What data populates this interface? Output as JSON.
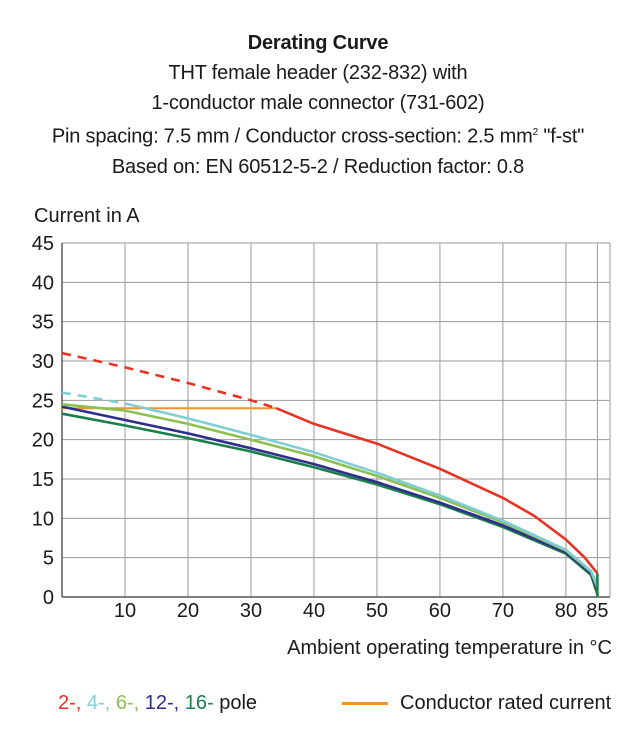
{
  "header": {
    "title": "Derating Curve",
    "line1": "THT female header (232-832) with",
    "line2": "1-conductor male connector  (731-602)",
    "line3_pre": "Pin spacing: 7.5 mm / Conductor cross-section: 2.5 mm",
    "line3_sup": "2",
    "line3_post": " \"f-st\"",
    "line4": "Based on: EN 60512-5-2 / Reduction factor: 0.8"
  },
  "legend": {
    "poles": [
      {
        "label": "2-",
        "sep": ", ",
        "color": "#e63323"
      },
      {
        "label": "4-",
        "sep": ", ",
        "color": "#7fcdd5"
      },
      {
        "label": "6-",
        "sep": ", ",
        "color": "#8cc152"
      },
      {
        "label": "12-",
        "sep": ", ",
        "color": "#2e2e8c"
      },
      {
        "label": "16-",
        "sep": "",
        "color": "#1a7f4b"
      }
    ],
    "pole_suffix": " pole",
    "rated_label": "Conductor rated current",
    "rated_color": "#f39325"
  },
  "chart_data": {
    "type": "line",
    "title": "Derating Curve",
    "ylabel": "Current in A",
    "xlabel": "Ambient operating temperature in °C",
    "xlim": [
      0,
      87
    ],
    "ylim": [
      0,
      45
    ],
    "xticks": [
      10,
      20,
      30,
      40,
      50,
      60,
      70,
      80,
      85
    ],
    "yticks": [
      0,
      5,
      10,
      15,
      20,
      25,
      30,
      35,
      40,
      45
    ],
    "grid": true,
    "rated_current": {
      "name": "Conductor rated current",
      "value": 24,
      "x_range": [
        0,
        34
      ],
      "color": "#f39325"
    },
    "series": [
      {
        "name": "2-pole",
        "color": "#e63323",
        "dashed_until": 34,
        "x": [
          0,
          10,
          20,
          30,
          34,
          40,
          50,
          60,
          70,
          75,
          80,
          83,
          85
        ],
        "y": [
          31,
          29.2,
          27.2,
          25,
          24,
          22,
          19.5,
          16.3,
          12.6,
          10.3,
          7.3,
          5,
          3
        ]
      },
      {
        "name": "4-pole",
        "color": "#7fcdd5",
        "dashed_until": 10,
        "x": [
          0,
          10,
          20,
          30,
          40,
          50,
          60,
          70,
          80,
          84,
          85
        ],
        "y": [
          26,
          24.6,
          22.7,
          20.6,
          18.4,
          15.8,
          12.9,
          9.7,
          6.0,
          3.3,
          1.5
        ]
      },
      {
        "name": "6-pole",
        "color": "#8cc152",
        "dashed_until": 0,
        "x": [
          0,
          10,
          20,
          30,
          40,
          50,
          60,
          70,
          80,
          84,
          85
        ],
        "y": [
          24.5,
          23.7,
          22.0,
          20.0,
          17.9,
          15.4,
          12.6,
          9.5,
          5.9,
          3.2,
          1.2
        ]
      },
      {
        "name": "12-pole",
        "color": "#2e2e8c",
        "dashed_until": 0,
        "x": [
          0,
          10,
          20,
          30,
          40,
          50,
          60,
          70,
          80,
          84,
          85
        ],
        "y": [
          24.2,
          22.5,
          20.8,
          18.9,
          16.9,
          14.6,
          12.0,
          9.1,
          5.7,
          3.0,
          0.8
        ]
      },
      {
        "name": "16-pole",
        "color": "#1a7f4b",
        "dashed_until": 0,
        "x": [
          0,
          10,
          20,
          30,
          40,
          50,
          60,
          70,
          80,
          84,
          85
        ],
        "y": [
          23.3,
          21.8,
          20.2,
          18.5,
          16.5,
          14.3,
          11.8,
          8.9,
          5.5,
          2.8,
          0.3
        ]
      }
    ]
  }
}
